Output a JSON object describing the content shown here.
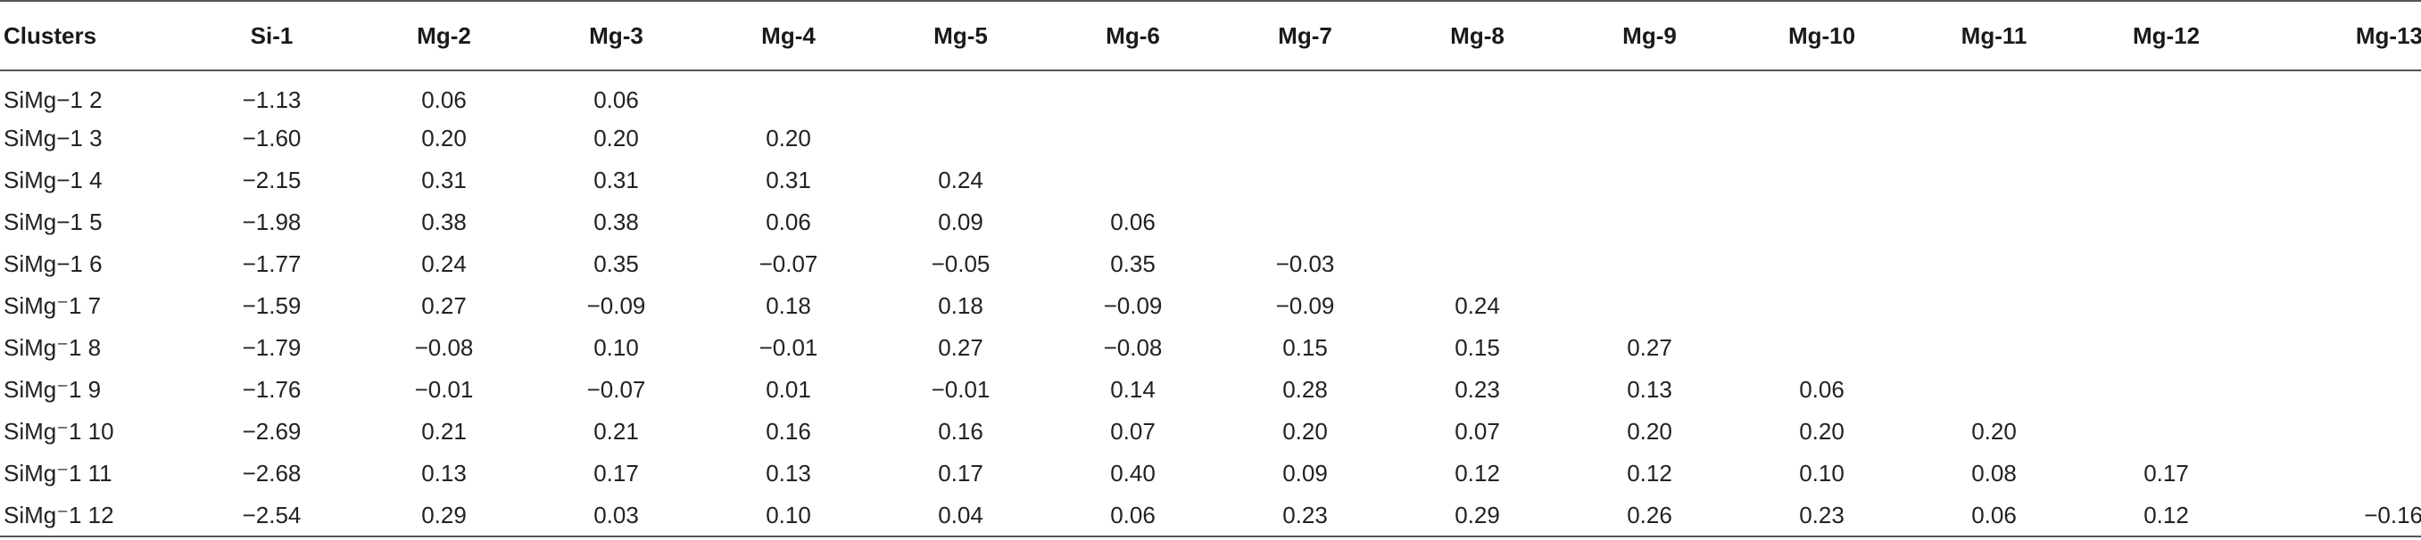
{
  "table": {
    "headers": [
      "Clusters",
      "Si-1",
      "Mg-2",
      "Mg-3",
      "Mg-4",
      "Mg-5",
      "Mg-6",
      "Mg-7",
      "Mg-8",
      "Mg-9",
      "Mg-10",
      "Mg-11",
      "Mg-12",
      "Mg-13"
    ],
    "rows": [
      [
        "SiMg−1 2",
        "−1.13",
        "0.06",
        "0.06",
        "",
        "",
        "",
        "",
        "",
        "",
        "",
        "",
        "",
        ""
      ],
      [
        "SiMg−1 3",
        "−1.60",
        "0.20",
        "0.20",
        "0.20",
        "",
        "",
        "",
        "",
        "",
        "",
        "",
        "",
        ""
      ],
      [
        "SiMg−1 4",
        "−2.15",
        "0.31",
        "0.31",
        "0.31",
        "0.24",
        "",
        "",
        "",
        "",
        "",
        "",
        "",
        ""
      ],
      [
        "SiMg−1 5",
        "−1.98",
        "0.38",
        "0.38",
        "0.06",
        "0.09",
        "0.06",
        "",
        "",
        "",
        "",
        "",
        "",
        ""
      ],
      [
        "SiMg−1 6",
        "−1.77",
        "0.24",
        "0.35",
        "−0.07",
        "−0.05",
        "0.35",
        "−0.03",
        "",
        "",
        "",
        "",
        "",
        ""
      ],
      [
        "SiMg⁻1 7",
        "−1.59",
        "0.27",
        "−0.09",
        "0.18",
        "0.18",
        "−0.09",
        "−0.09",
        "0.24",
        "",
        "",
        "",
        "",
        ""
      ],
      [
        "SiMg⁻1 8",
        "−1.79",
        "−0.08",
        "0.10",
        "−0.01",
        "0.27",
        "−0.08",
        "0.15",
        "0.15",
        "0.27",
        "",
        "",
        "",
        ""
      ],
      [
        "SiMg⁻1 9",
        "−1.76",
        "−0.01",
        "−0.07",
        "0.01",
        "−0.01",
        "0.14",
        "0.28",
        "0.23",
        "0.13",
        "0.06",
        "",
        "",
        ""
      ],
      [
        "SiMg⁻1 10",
        "−2.69",
        "0.21",
        "0.21",
        "0.16",
        "0.16",
        "0.07",
        "0.20",
        "0.07",
        "0.20",
        "0.20",
        "0.20",
        "",
        ""
      ],
      [
        "SiMg⁻1 11",
        "−2.68",
        "0.13",
        "0.17",
        "0.13",
        "0.17",
        "0.40",
        "0.09",
        "0.12",
        "0.12",
        "0.10",
        "0.08",
        "0.17",
        ""
      ],
      [
        "SiMg⁻1 12",
        "−2.54",
        "0.29",
        "0.03",
        "0.10",
        "0.04",
        "0.06",
        "0.23",
        "0.29",
        "0.26",
        "0.23",
        "0.06",
        "0.12",
        "−0.16"
      ]
    ]
  }
}
